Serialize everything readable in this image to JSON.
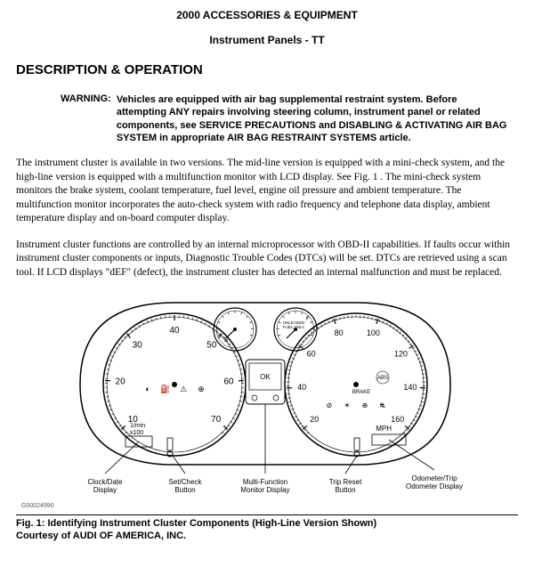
{
  "header": {
    "line1": "2000 ACCESSORIES & EQUIPMENT",
    "line2": "Instrument Panels - TT"
  },
  "section_title": "DESCRIPTION & OPERATION",
  "warning": {
    "label": "WARNING:",
    "text": "Vehicles are equipped with air bag supplemental restraint system. Before attempting ANY repairs involving steering column, instrument panel or related components, see SERVICE PRECAUTIONS and DISABLING & ACTIVATING AIR BAG SYSTEM in appropriate AIR BAG RESTRAINT SYSTEMS article."
  },
  "paragraphs": {
    "p1": "The instrument cluster is available in two versions. The mid-line version is equipped with a mini-check system, and the high-line version is equipped with a multifunction monitor with LCD display. See Fig. 1 . The mini-check system monitors the brake system, coolant temperature, fuel level, engine oil pressure and ambient temperature. The multifunction monitor incorporates the auto-check system with radio frequency and telephone data display, ambient temperature display and on-board computer display.",
    "p2": "Instrument cluster functions are controlled by an internal microprocessor with OBD-II capabilities. If faults occur within instrument cluster components or inputs, Diagnostic Trouble Codes (DTCs) will be set. DTCs are retrieved using a scan tool. If LCD displays \"dEF\" (defect), the instrument cluster has detected an internal malfunction and must be replaced."
  },
  "figure": {
    "id_text": "G00024990",
    "caption": "Fig. 1: Identifying Instrument Cluster Components (High-Line Version Shown)",
    "credit": "Courtesy of AUDI OF AMERICA, INC.",
    "labels": {
      "clock": "Clock/Date\nDisplay",
      "setcheck": "Set/Check\nButton",
      "multi": "Multi-Function\nMonitor Display",
      "tripreset": "Trip Reset\nButton",
      "odometer": "Odometer/Trip\nOdometer Display"
    },
    "tach": {
      "ticks": [
        "10",
        "20",
        "30",
        "40",
        "50",
        "60",
        "70"
      ],
      "unit": "1/min\nx100"
    },
    "speedo": {
      "ticks": [
        "20",
        "40",
        "60",
        "80",
        "100",
        "120",
        "140",
        "160"
      ],
      "unit": "MPH",
      "abs": "ABS",
      "brake": "BRAKE"
    },
    "small_gauges": {
      "left_label": "E",
      "right_label": "UNLEADED\nFUEL ONLY",
      "right_f": "F",
      "ok": "OK"
    },
    "colors": {
      "line": "#000000",
      "bg": "#ffffff",
      "text": "#000000"
    }
  }
}
